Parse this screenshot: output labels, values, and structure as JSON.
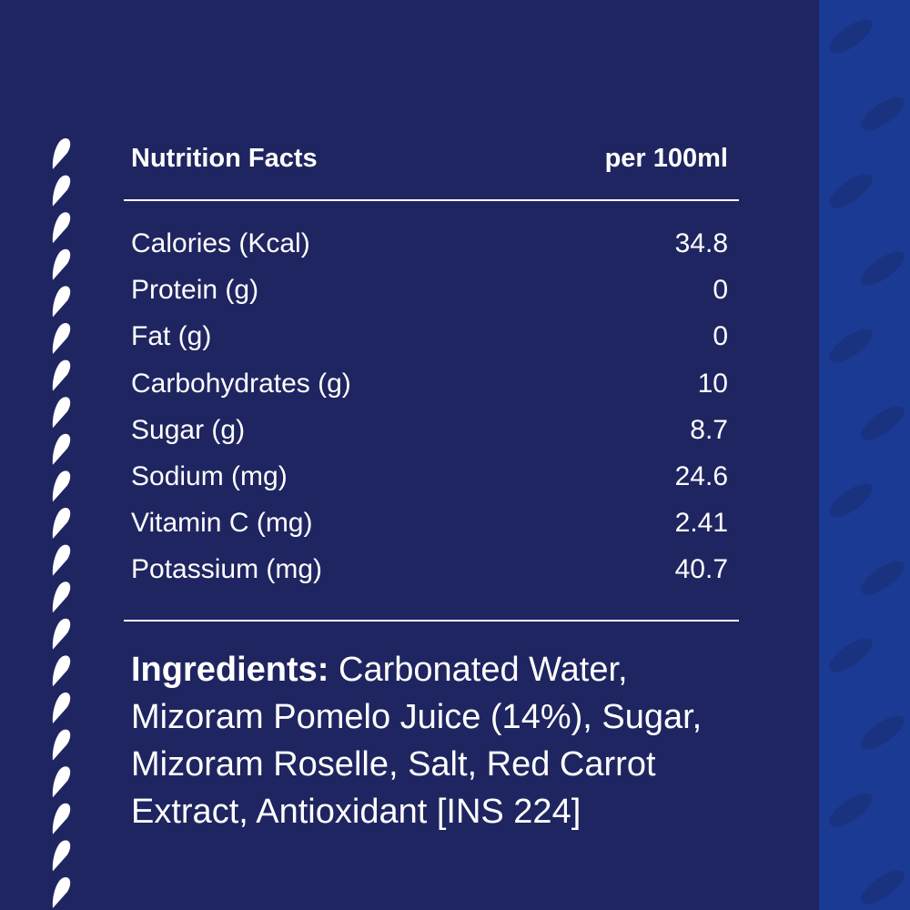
{
  "colors": {
    "background": "#1f2560",
    "side_stripe": "#1a3a94",
    "text": "#ffffff"
  },
  "nutrition": {
    "title": "Nutrition Facts",
    "serving": "per 100ml",
    "rows": [
      {
        "label": "Calories (Kcal)",
        "value": "34.8"
      },
      {
        "label": "Protein (g)",
        "value": "0"
      },
      {
        "label": "Fat (g)",
        "value": "0"
      },
      {
        "label": "Carbohydrates (g)",
        "value": "10"
      },
      {
        "label": "Sugar (g)",
        "value": "8.7"
      },
      {
        "label": "Sodium (mg)",
        "value": "24.6"
      },
      {
        "label": "Vitamin C (mg)",
        "value": "2.41"
      },
      {
        "label": "Potassium (mg)",
        "value": "40.7"
      }
    ]
  },
  "ingredients": {
    "label": "Ingredients:",
    "text": " Carbonated Water, Mizoram Pomelo Juice (14%), Sugar, Mizoram Roselle, Salt, Red Carrot Extract, Antioxidant [INS 224]"
  }
}
